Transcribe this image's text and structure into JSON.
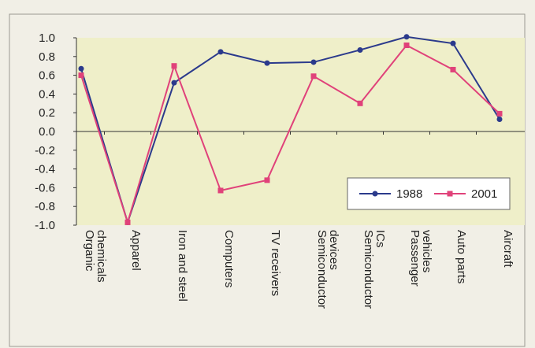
{
  "chart_data": {
    "type": "line",
    "title": "",
    "xlabel": "",
    "ylabel": "",
    "categories": [
      [
        "Organic",
        "chemicals"
      ],
      [
        "Apparel"
      ],
      [
        "Iron and steel"
      ],
      [
        "Computers"
      ],
      [
        "TV receivers"
      ],
      [
        "Semiconductor",
        "devices"
      ],
      [
        "Semiconductor",
        "ICs"
      ],
      [
        "Passenger",
        "vehicles"
      ],
      [
        "Auto parts"
      ],
      [
        "Aircraft"
      ]
    ],
    "series": [
      {
        "name": "1988",
        "color": "#2b3a8c",
        "marker": "circle",
        "values": [
          0.67,
          -0.97,
          0.52,
          0.85,
          0.73,
          0.74,
          0.87,
          1.01,
          0.94,
          0.13
        ]
      },
      {
        "name": "2001",
        "color": "#e0427a",
        "marker": "square",
        "values": [
          0.6,
          -0.97,
          0.7,
          -0.63,
          -0.52,
          0.59,
          0.3,
          0.92,
          0.66,
          0.19
        ]
      }
    ],
    "ylim": [
      -1.0,
      1.0
    ],
    "yticks": [
      "1.0",
      "0.8",
      "0.6",
      "0.4",
      "0.2",
      "0.0",
      "-0.2",
      "-0.4",
      "-0.6",
      "-0.8",
      "-1.0"
    ],
    "grid": false,
    "legend_position": "right, lower half",
    "colors": {
      "plot_band": "#efefc9",
      "page": "#f1efe6",
      "axis": "#333333"
    }
  }
}
